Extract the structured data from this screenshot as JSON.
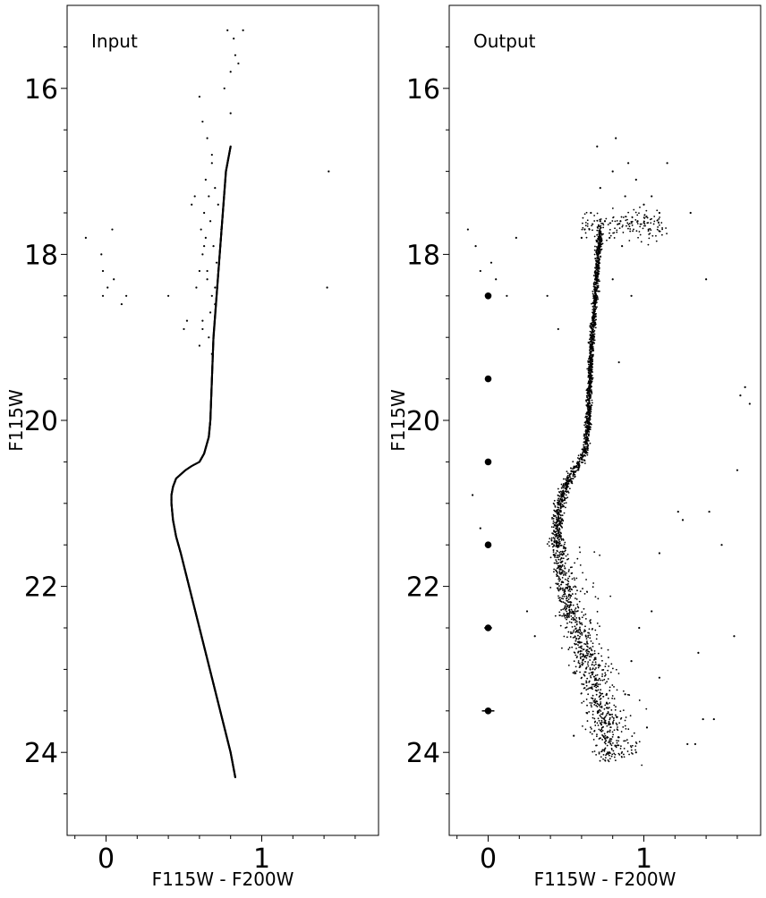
{
  "chart_data": [
    {
      "type": "scatter",
      "annotation": "Input",
      "xlabel": "F115W - F200W",
      "ylabel": "F115W",
      "xlim": [
        -0.25,
        1.75
      ],
      "ylim": [
        25.0,
        15.0
      ],
      "y_inverted": true,
      "xticks": [
        0,
        1
      ],
      "xtick_labels": [
        "0",
        "1"
      ],
      "yticks": [
        16,
        18,
        20,
        22,
        24
      ],
      "ytick_labels": [
        "16",
        "18",
        "20",
        "22",
        "24"
      ],
      "grid": false,
      "marker_color": "#000000",
      "isochrone_track": {
        "x": [
          0.83,
          0.8,
          0.76,
          0.72,
          0.68,
          0.64,
          0.6,
          0.56,
          0.52,
          0.48,
          0.45,
          0.43,
          0.42,
          0.42,
          0.43,
          0.45,
          0.48,
          0.51,
          0.55,
          0.6,
          0.63,
          0.66,
          0.67,
          0.68,
          0.69,
          0.71,
          0.73,
          0.75,
          0.77,
          0.79,
          0.8
        ],
        "y": [
          24.3,
          24.0,
          23.7,
          23.4,
          23.1,
          22.8,
          22.5,
          22.2,
          21.9,
          21.6,
          21.4,
          21.2,
          21.0,
          20.9,
          20.8,
          20.7,
          20.65,
          20.6,
          20.55,
          20.5,
          20.4,
          20.2,
          20.0,
          19.5,
          19.0,
          18.5,
          18.0,
          17.5,
          17.0,
          16.8,
          16.7
        ]
      },
      "scatter_points": {
        "x": [
          0.78,
          0.82,
          0.83,
          0.8,
          0.76,
          0.85,
          0.88,
          0.8,
          0.6,
          0.62,
          0.65,
          0.68,
          0.7,
          0.72,
          0.74,
          0.66,
          0.63,
          0.61,
          0.64,
          0.67,
          0.69,
          0.71,
          0.62,
          0.65,
          0.68,
          0.7,
          0.6,
          0.58,
          0.62,
          0.66,
          0.68,
          0.64,
          0.55,
          0.5,
          0.52,
          0.57,
          0.63,
          0.65,
          0.67,
          0.62,
          0.6,
          0.7,
          0.72,
          0.75,
          0.68,
          -0.13,
          -0.03,
          -0.02,
          0.01,
          0.04,
          0.05,
          0.13,
          -0.02,
          0.1,
          0.4,
          1.43,
          1.42
        ],
        "y": [
          15.3,
          15.4,
          15.6,
          15.8,
          16.0,
          15.7,
          15.3,
          16.3,
          16.1,
          16.4,
          16.6,
          16.9,
          17.2,
          17.4,
          17.7,
          17.3,
          17.5,
          17.7,
          17.8,
          17.6,
          17.9,
          18.1,
          18.0,
          18.3,
          18.5,
          18.6,
          18.2,
          18.4,
          18.8,
          19.0,
          19.2,
          17.1,
          17.4,
          18.9,
          18.8,
          17.3,
          17.9,
          18.2,
          18.7,
          18.9,
          19.1,
          18.4,
          18.2,
          17.5,
          16.8,
          17.8,
          18.0,
          18.2,
          18.4,
          17.7,
          18.3,
          18.5,
          18.5,
          18.6,
          18.5,
          17.0,
          18.4
        ]
      }
    },
    {
      "type": "scatter",
      "annotation": "Output",
      "xlabel": "F115W - F200W",
      "ylabel": "F115W",
      "xlim": [
        -0.25,
        1.75
      ],
      "ylim": [
        25.0,
        15.0
      ],
      "y_inverted": true,
      "xticks": [
        0,
        1
      ],
      "xtick_labels": [
        "0",
        "1"
      ],
      "yticks": [
        16,
        18,
        20,
        22,
        24
      ],
      "ytick_labels": [
        "16",
        "18",
        "20",
        "22",
        "24"
      ],
      "grid": false,
      "marker_color": "#000000",
      "error_bars": {
        "x": [
          0,
          0,
          0,
          0,
          0,
          0
        ],
        "y": [
          18.5,
          19.5,
          20.5,
          21.5,
          22.5,
          23.5
        ],
        "xerr": [
          0.003,
          0.005,
          0.008,
          0.012,
          0.025,
          0.04
        ]
      },
      "sequence_ridge": {
        "x": [
          0.8,
          0.76,
          0.72,
          0.67,
          0.62,
          0.57,
          0.52,
          0.48,
          0.45,
          0.44,
          0.45,
          0.48,
          0.52,
          0.57,
          0.62,
          0.64,
          0.65,
          0.66,
          0.68,
          0.7,
          0.72
        ],
        "y": [
          24.1,
          23.8,
          23.5,
          23.2,
          22.9,
          22.6,
          22.3,
          22.0,
          21.7,
          21.4,
          21.1,
          20.9,
          20.7,
          20.55,
          20.4,
          20.1,
          19.7,
          19.2,
          18.7,
          18.2,
          17.7
        ]
      },
      "scatter_points": {
        "x": [
          0.7,
          0.82,
          0.9,
          0.95,
          1.0,
          1.05,
          0.85,
          0.75,
          0.65,
          0.6,
          0.66,
          0.72,
          0.8,
          0.88,
          0.96,
          1.03,
          1.1,
          1.15,
          0.62,
          0.78,
          0.86,
          0.8,
          0.92,
          1.3,
          1.4,
          1.42,
          1.6,
          1.65,
          1.62,
          1.68,
          1.5,
          1.58,
          1.1,
          1.22,
          1.25,
          1.05,
          0.97,
          0.92,
          0.88,
          1.35,
          1.33,
          1.1,
          1.02,
          0.95,
          1.28,
          1.45,
          1.38,
          0.72,
          0.68,
          0.84,
          -0.13,
          -0.08,
          -0.05,
          0.02,
          0.05,
          0.12,
          0.18,
          0.38,
          0.45,
          -0.1,
          -0.05,
          0.25,
          0.3,
          0.55,
          0.52
        ],
        "y": [
          16.7,
          16.6,
          16.9,
          17.1,
          17.4,
          17.3,
          17.6,
          17.6,
          17.7,
          17.8,
          17.5,
          17.2,
          17.0,
          17.3,
          17.6,
          17.7,
          17.5,
          16.9,
          17.7,
          17.8,
          17.9,
          18.3,
          18.5,
          17.5,
          18.3,
          21.1,
          20.6,
          19.6,
          19.7,
          19.8,
          21.5,
          22.6,
          21.6,
          21.1,
          21.2,
          22.3,
          22.5,
          22.9,
          23.3,
          22.8,
          23.9,
          23.1,
          23.7,
          24.0,
          23.9,
          23.6,
          23.6,
          17.6,
          18.7,
          19.3,
          17.7,
          17.9,
          18.2,
          18.1,
          18.3,
          18.5,
          17.8,
          18.5,
          18.9,
          20.9,
          21.3,
          22.3,
          22.6,
          23.8,
          22.1
        ]
      }
    }
  ]
}
